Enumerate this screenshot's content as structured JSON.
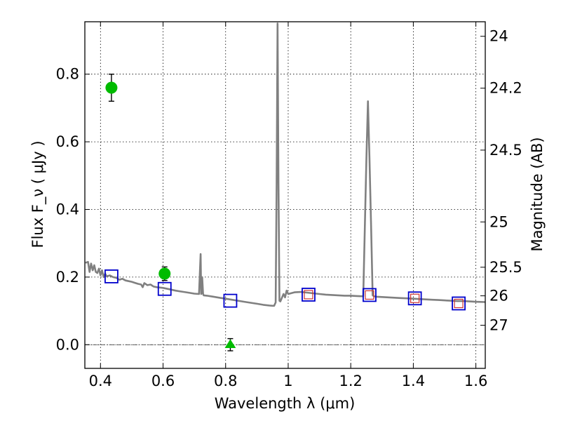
{
  "chart_data": {
    "type": "scatter",
    "xlabel": "Wavelength  λ (μm)",
    "ylabel": "Flux  F_ν  ( μJy )",
    "ylabel_right": "Magnitude (AB)",
    "xlim": [
      0.35,
      1.63
    ],
    "ylim": [
      -0.07,
      0.955
    ],
    "grid": true,
    "x_ticks": [
      {
        "value": 0.4,
        "label": "0.4"
      },
      {
        "value": 0.6,
        "label": "0.6"
      },
      {
        "value": 0.8,
        "label": "0.8"
      },
      {
        "value": 1.0,
        "label": "1"
      },
      {
        "value": 1.2,
        "label": "1.2"
      },
      {
        "value": 1.4,
        "label": "1.4"
      },
      {
        "value": 1.6,
        "label": "1.6"
      }
    ],
    "y_ticks": [
      {
        "value": 0.0,
        "label": "0.0"
      },
      {
        "value": 0.2,
        "label": "0.2"
      },
      {
        "value": 0.4,
        "label": "0.4"
      },
      {
        "value": 0.6,
        "label": "0.6"
      },
      {
        "value": 0.8,
        "label": "0.8"
      }
    ],
    "right_ticks": [
      {
        "mag": 24,
        "label": "24"
      },
      {
        "mag": 24.2,
        "label": "24.2"
      },
      {
        "mag": 24.5,
        "label": "24.5"
      },
      {
        "mag": 25,
        "label": "25"
      },
      {
        "mag": 25.5,
        "label": "25.5"
      },
      {
        "mag": 26,
        "label": "26"
      },
      {
        "mag": 27,
        "label": "27"
      }
    ],
    "series": [
      {
        "type": "line",
        "color": "#808080",
        "x": [
          0.352,
          0.36,
          0.365,
          0.37,
          0.375,
          0.38,
          0.385,
          0.39,
          0.395,
          0.4,
          0.405,
          0.41,
          0.415,
          0.42,
          0.43,
          0.44,
          0.45,
          0.46,
          0.47,
          0.48,
          0.49,
          0.5,
          0.51,
          0.52,
          0.53,
          0.535,
          0.54,
          0.55,
          0.56,
          0.57,
          0.58,
          0.6,
          0.62,
          0.64,
          0.66,
          0.68,
          0.7,
          0.715,
          0.72,
          0.722,
          0.725,
          0.728,
          0.73,
          0.74,
          0.76,
          0.78,
          0.8,
          0.82,
          0.84,
          0.86,
          0.88,
          0.9,
          0.92,
          0.94,
          0.95,
          0.955,
          0.96,
          0.963,
          0.966,
          0.969,
          0.972,
          0.975,
          0.985,
          0.99,
          0.995,
          1.0,
          1.02,
          1.04,
          1.06,
          1.08,
          1.1,
          1.12,
          1.14,
          1.16,
          1.18,
          1.2,
          1.22,
          1.24,
          1.245,
          1.25,
          1.255,
          1.26,
          1.265,
          1.27,
          1.275,
          1.28,
          1.3,
          1.32,
          1.34,
          1.36,
          1.38,
          1.4,
          1.42,
          1.44,
          1.46,
          1.48,
          1.5,
          1.52,
          1.54,
          1.56,
          1.58,
          1.6,
          1.63
        ],
        "values": [
          0.242,
          0.245,
          0.215,
          0.24,
          0.22,
          0.235,
          0.215,
          0.212,
          0.225,
          0.205,
          0.22,
          0.2,
          0.21,
          0.202,
          0.205,
          0.2,
          0.198,
          0.192,
          0.195,
          0.19,
          0.188,
          0.186,
          0.183,
          0.18,
          0.178,
          0.17,
          0.182,
          0.176,
          0.178,
          0.172,
          0.17,
          0.168,
          0.164,
          0.16,
          0.157,
          0.154,
          0.151,
          0.15,
          0.268,
          0.15,
          0.2,
          0.15,
          0.146,
          0.145,
          0.142,
          0.139,
          0.136,
          0.133,
          0.13,
          0.127,
          0.124,
          0.121,
          0.118,
          0.116,
          0.115,
          0.115,
          0.125,
          0.48,
          0.95,
          0.48,
          0.13,
          0.128,
          0.15,
          0.14,
          0.16,
          0.15,
          0.155,
          0.156,
          0.154,
          0.152,
          0.15,
          0.148,
          0.147,
          0.146,
          0.145,
          0.145,
          0.144,
          0.143,
          0.35,
          0.55,
          0.72,
          0.55,
          0.35,
          0.146,
          0.143,
          0.142,
          0.141,
          0.14,
          0.139,
          0.138,
          0.137,
          0.136,
          0.135,
          0.134,
          0.133,
          0.132,
          0.131,
          0.13,
          0.129,
          0.129,
          0.128,
          0.127,
          0.126
        ]
      },
      {
        "type": "scatter",
        "marker": "circle",
        "color": "#00bb00",
        "x": [
          0.435,
          0.605
        ],
        "values": [
          0.76,
          0.21
        ],
        "yerr": [
          0.04,
          0.02
        ]
      },
      {
        "type": "scatter",
        "marker": "triangle",
        "color": "#00bb00",
        "x": [
          0.815
        ],
        "values": [
          0.0
        ],
        "yerr": [
          0.018
        ]
      },
      {
        "type": "scatter",
        "marker": "square-open",
        "color": "#0000cc",
        "x": [
          0.435,
          0.605,
          0.815,
          1.065,
          1.26,
          1.405,
          1.545
        ],
        "values": [
          0.202,
          0.165,
          0.13,
          0.148,
          0.147,
          0.137,
          0.122
        ]
      },
      {
        "type": "scatter",
        "marker": "square-open-small",
        "color": "#cc3333",
        "x": [
          1.065,
          1.26,
          1.405,
          1.545
        ],
        "values": [
          0.148,
          0.147,
          0.137,
          0.122
        ]
      }
    ]
  }
}
